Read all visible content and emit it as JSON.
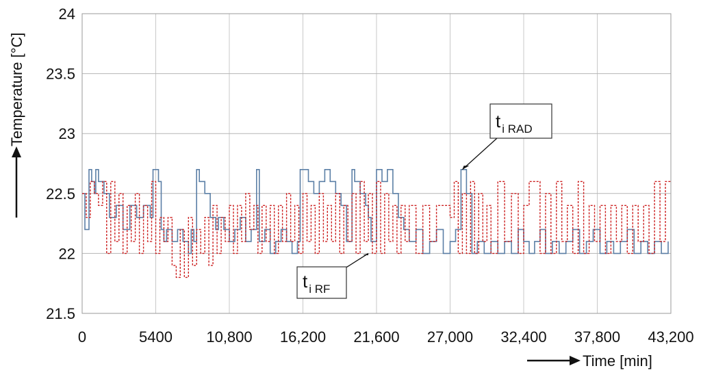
{
  "chart_data": {
    "type": "line",
    "xlabel": "Time [min]",
    "ylabel": "Temperature [°C]",
    "xlim": [
      0,
      43200
    ],
    "ylim": [
      21.5,
      24
    ],
    "x_ticks": [
      "0",
      "5400",
      "10,800",
      "16,200",
      "21,600",
      "27,000",
      "32,400",
      "37,800",
      "43,200"
    ],
    "x_tick_values": [
      0,
      5400,
      10800,
      16200,
      21600,
      27000,
      32400,
      37800,
      43200
    ],
    "y_ticks": [
      "21.5",
      "22",
      "22.5",
      "23",
      "23.5",
      "24"
    ],
    "y_tick_values": [
      21.5,
      22,
      22.5,
      23,
      23.5,
      24
    ],
    "grid": true,
    "series": [
      {
        "color": "#5b7fa6",
        "style": "solid",
        "x": [
          0,
          200,
          300,
          500,
          700,
          900,
          1000,
          1200,
          1400,
          1600,
          2000,
          2500,
          3000,
          3500,
          4000,
          4500,
          5000,
          5200,
          5400,
          5600,
          5800,
          6000,
          6200,
          6600,
          7000,
          7400,
          7800,
          8000,
          8200,
          8400,
          8600,
          9000,
          9400,
          9800,
          10000,
          10400,
          10800,
          11200,
          11600,
          12000,
          12400,
          12800,
          13000,
          13400,
          13800,
          14200,
          14600,
          15000,
          15400,
          15800,
          16000,
          16200,
          16600,
          17000,
          17400,
          17800,
          18200,
          18600,
          19000,
          19400,
          19800,
          20000,
          20400,
          20800,
          21000,
          21200,
          21600,
          22000,
          22400,
          22800,
          23200,
          23600,
          24000,
          24500,
          25000,
          25500,
          26000,
          26500,
          27000,
          27400,
          27800,
          28200,
          28600,
          29000,
          29500,
          30000,
          30500,
          31000,
          31500,
          32000,
          32400,
          32800,
          33200,
          33600,
          34000,
          34500,
          35000,
          35500,
          36000,
          36500,
          37000,
          37500,
          38000,
          38500,
          39000,
          39500,
          40000,
          40500,
          41000,
          41500,
          42000,
          42500,
          43000
        ],
        "y": [
          22.5,
          22.2,
          22.2,
          22.7,
          22.6,
          22.5,
          22.7,
          22.6,
          22.6,
          22.5,
          22.3,
          22.4,
          22.2,
          22.4,
          22.3,
          22.4,
          22.3,
          22.7,
          22.7,
          22.6,
          22.2,
          22.1,
          22.2,
          22.1,
          22.2,
          22.1,
          22.0,
          22.2,
          22.1,
          22.7,
          22.6,
          22.5,
          22.3,
          22.2,
          22.3,
          22.2,
          22.1,
          22.2,
          22.3,
          22.1,
          22.2,
          22.7,
          22.1,
          22.2,
          22.0,
          22.1,
          22.2,
          22.1,
          22.0,
          22.1,
          22.7,
          22.7,
          22.6,
          22.5,
          22.6,
          22.7,
          22.6,
          22.5,
          22.4,
          22.1,
          22.7,
          22.6,
          22.5,
          22.4,
          22.3,
          22.1,
          22.7,
          22.6,
          22.7,
          22.5,
          22.3,
          22.2,
          22.1,
          22.2,
          22.0,
          22.1,
          22.2,
          22.0,
          22.1,
          22.2,
          22.7,
          22.5,
          22.0,
          22.1,
          22.0,
          22.1,
          22.0,
          22.1,
          22.0,
          22.2,
          22.1,
          22.0,
          22.1,
          22.2,
          22.0,
          22.1,
          22.0,
          22.1,
          22.2,
          22.0,
          22.1,
          22.2,
          22.0,
          22.1,
          22.0,
          22.1,
          22.2,
          22.0,
          22.1,
          22.0,
          22.1,
          22.0,
          22.1
        ]
      },
      {
        "color": "#cc1f1f",
        "style": "dashed",
        "x": [
          0,
          300,
          600,
          900,
          1200,
          1500,
          1800,
          2100,
          2400,
          2700,
          3000,
          3300,
          3600,
          3900,
          4200,
          4500,
          4800,
          5100,
          5400,
          5700,
          6000,
          6300,
          6600,
          6900,
          7200,
          7500,
          7800,
          8100,
          8400,
          8700,
          9000,
          9300,
          9600,
          9900,
          10200,
          10500,
          10800,
          11100,
          11400,
          11700,
          12000,
          12300,
          12600,
          12900,
          13200,
          13500,
          13800,
          14100,
          14400,
          14700,
          15000,
          15300,
          15600,
          15900,
          16200,
          16500,
          16800,
          17100,
          17400,
          17700,
          18000,
          18300,
          18600,
          18900,
          19200,
          19500,
          19800,
          20100,
          20400,
          20700,
          21000,
          21300,
          21600,
          21900,
          22200,
          22500,
          22800,
          23100,
          23400,
          23700,
          24000,
          24500,
          25000,
          25500,
          26000,
          26500,
          27000,
          27300,
          27600,
          27900,
          28200,
          28500,
          28800,
          29100,
          29400,
          29700,
          30000,
          30500,
          31000,
          31500,
          32000,
          32400,
          32800,
          33200,
          33600,
          34000,
          34400,
          34800,
          35200,
          35600,
          36000,
          36400,
          36800,
          37200,
          37600,
          38000,
          38400,
          38800,
          39200,
          39600,
          40000,
          40400,
          40800,
          41200,
          41600,
          42000,
          42400,
          42800,
          43200
        ],
        "y": [
          22.5,
          22.3,
          22.6,
          22.5,
          22.4,
          22.6,
          22.0,
          22.6,
          22.1,
          22.5,
          22.0,
          22.4,
          22.1,
          22.5,
          22.0,
          22.4,
          22.1,
          22.6,
          22.0,
          22.3,
          22.1,
          22.3,
          21.9,
          21.8,
          22.2,
          21.8,
          22.3,
          21.9,
          22.2,
          22.0,
          22.3,
          21.9,
          22.4,
          22.0,
          22.3,
          22.1,
          22.4,
          22.0,
          22.4,
          22.1,
          22.5,
          22.2,
          22.4,
          22.0,
          22.4,
          22.1,
          22.4,
          22.0,
          22.4,
          22.1,
          22.5,
          22.1,
          22.4,
          22.0,
          22.5,
          22.1,
          22.4,
          22.0,
          22.5,
          22.1,
          22.4,
          22.1,
          22.5,
          22.0,
          22.4,
          22.1,
          22.5,
          22.0,
          22.6,
          22.1,
          22.5,
          22.0,
          22.6,
          22.0,
          22.5,
          22.1,
          22.4,
          22.0,
          22.4,
          22.1,
          22.4,
          22.0,
          22.4,
          22.1,
          22.4,
          22.4,
          22.3,
          22.6,
          22.0,
          22.5,
          22.0,
          22.6,
          22.0,
          22.5,
          22.1,
          22.4,
          22.0,
          22.6,
          22.1,
          22.5,
          22.0,
          22.4,
          22.6,
          22.6,
          22.0,
          22.5,
          22.0,
          22.6,
          22.1,
          22.4,
          22.0,
          22.6,
          22.0,
          22.4,
          22.1,
          22.4,
          22.0,
          22.4,
          22.1,
          22.4,
          22.0,
          22.4,
          22.1,
          22.4,
          22.0,
          22.6,
          22.1,
          22.6,
          22.6
        ]
      }
    ],
    "annotations": [
      {
        "main": "t",
        "sub": "i RAD",
        "x": 27900,
        "y": 22.7
      },
      {
        "main": "t",
        "sub": "i RF",
        "x": 21000,
        "y": 22.0
      }
    ]
  }
}
